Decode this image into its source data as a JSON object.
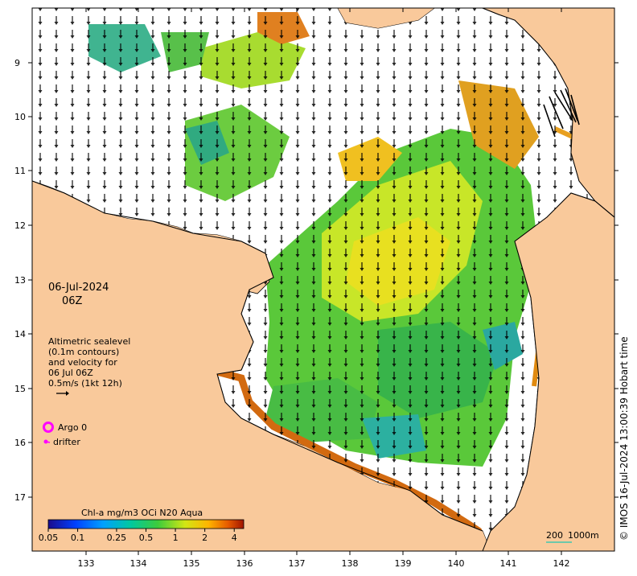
{
  "date_label": "06-Jul-2024",
  "time_label": "06Z",
  "legend_text": {
    "line1": "Altimetric sealevel",
    "line2": "(0.1m contours)",
    "line3": "and velocity for",
    "line4": "06 Jul 06Z",
    "line5": "0.5m/s (1kt 12h)"
  },
  "argo_label": "Argo 0",
  "drifter_label": "drifter",
  "colorbar": {
    "title": "Chl-a mg/m3 OCi N20 Aqua",
    "ticks": [
      "0.05",
      "0.1",
      "0.25",
      "0.5",
      "1",
      "2",
      "4"
    ],
    "tick_values": [
      0.05,
      0.1,
      0.25,
      0.5,
      1,
      2,
      4
    ],
    "range": [
      0.05,
      5
    ]
  },
  "scale_bar": {
    "label1": "200",
    "label2": "1000m"
  },
  "copyright": "© IMOS 16-Jul-2024 13:00:39 Hobart time",
  "x_ticks": [
    "133",
    "134",
    "135",
    "136",
    "137",
    "138",
    "139",
    "140",
    "141",
    "142"
  ],
  "y_ticks": [
    "9",
    "10",
    "11",
    "12",
    "13",
    "14",
    "15",
    "16",
    "17"
  ],
  "colors": {
    "land": "#f9c99b",
    "ocean_no_data": "#ffffff",
    "argo": "#ff00ff",
    "drifter": "#ff00ff",
    "coastline": "#000000"
  }
}
